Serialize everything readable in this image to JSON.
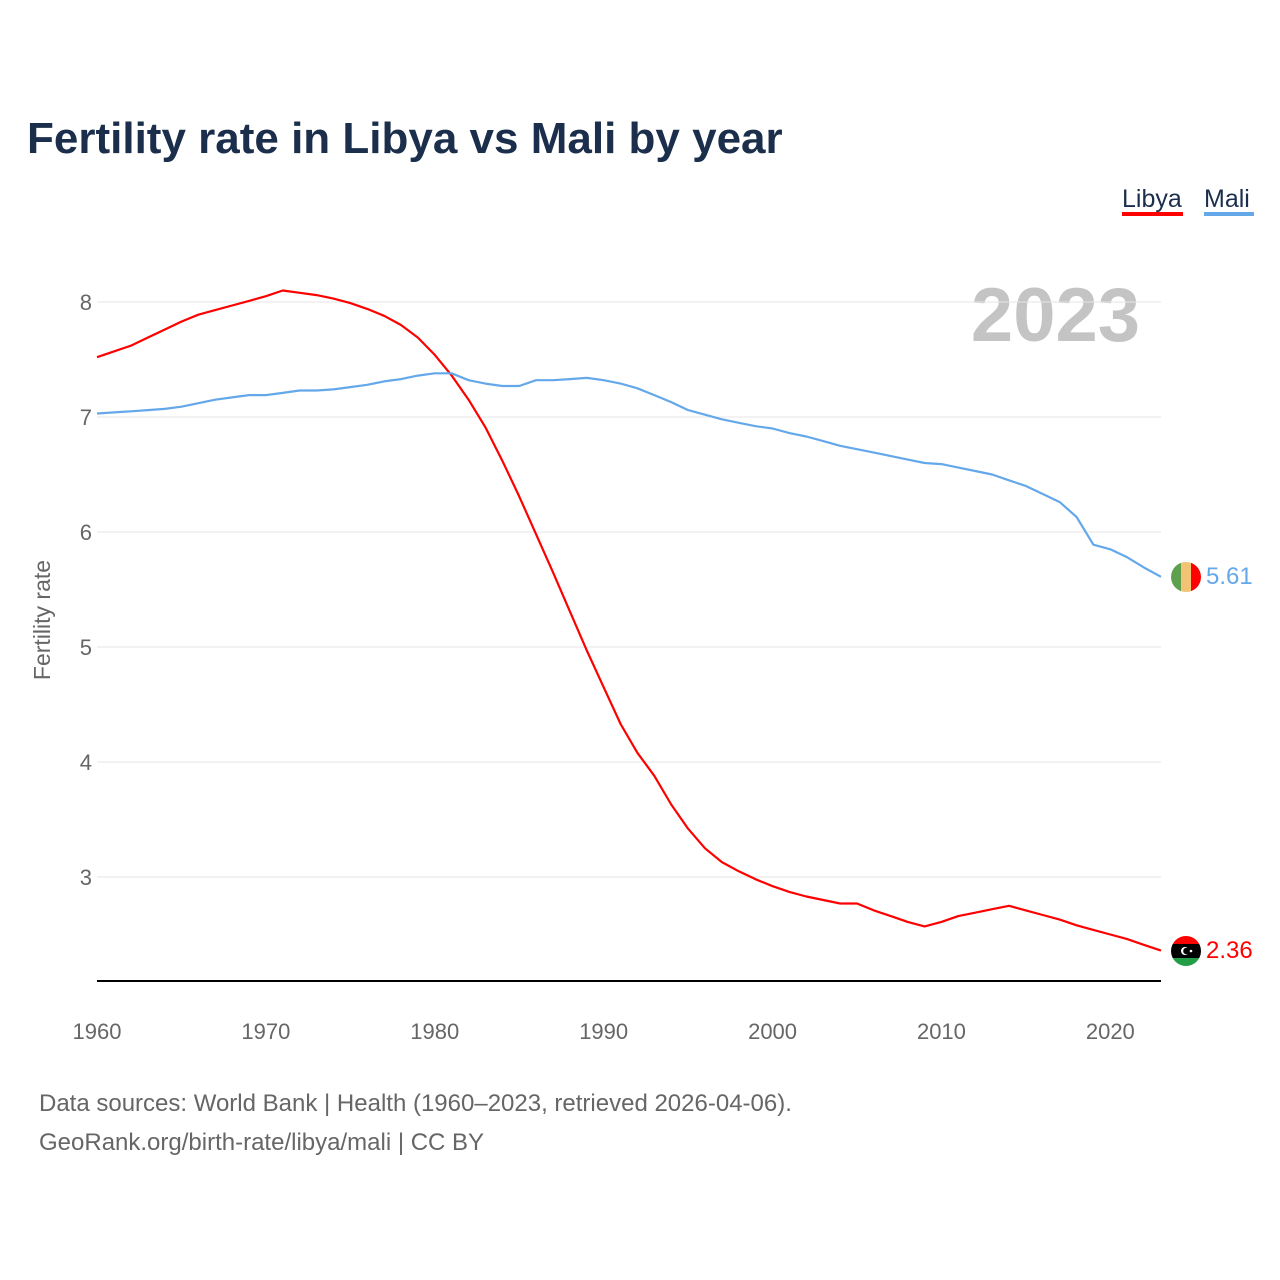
{
  "chart_data": {
    "type": "line",
    "title": "Fertility rate in Libya vs Mali by year",
    "ylabel": "Fertility rate",
    "xlabel": "",
    "xlim": [
      1960,
      2023
    ],
    "ylim": [
      2.1,
      8.1
    ],
    "yticks": [
      3,
      4,
      5,
      6,
      7,
      8
    ],
    "xticks": [
      1960,
      1970,
      1980,
      1990,
      2000,
      2010,
      2020
    ],
    "grid": true,
    "legend_position": "top-right",
    "year_label": "2023",
    "x": [
      1960,
      1961,
      1962,
      1963,
      1964,
      1965,
      1966,
      1967,
      1968,
      1969,
      1970,
      1971,
      1972,
      1973,
      1974,
      1975,
      1976,
      1977,
      1978,
      1979,
      1980,
      1981,
      1982,
      1983,
      1984,
      1985,
      1986,
      1987,
      1988,
      1989,
      1990,
      1991,
      1992,
      1993,
      1994,
      1995,
      1996,
      1997,
      1998,
      1999,
      2000,
      2001,
      2002,
      2003,
      2004,
      2005,
      2006,
      2007,
      2008,
      2009,
      2010,
      2011,
      2012,
      2013,
      2014,
      2015,
      2016,
      2017,
      2018,
      2019,
      2020,
      2021,
      2022,
      2023
    ],
    "series": [
      {
        "name": "Libya",
        "color": "#ff0000",
        "end_label": "2.36",
        "values": [
          7.52,
          7.57,
          7.62,
          7.69,
          7.76,
          7.83,
          7.89,
          7.93,
          7.97,
          8.01,
          8.05,
          8.1,
          8.08,
          8.06,
          8.03,
          7.99,
          7.94,
          7.88,
          7.8,
          7.69,
          7.54,
          7.36,
          7.15,
          6.91,
          6.62,
          6.31,
          5.98,
          5.65,
          5.31,
          4.97,
          4.65,
          4.33,
          4.08,
          3.88,
          3.63,
          3.42,
          3.25,
          3.13,
          3.05,
          2.98,
          2.92,
          2.87,
          2.83,
          2.8,
          2.77,
          2.77,
          2.71,
          2.66,
          2.61,
          2.57,
          2.61,
          2.66,
          2.69,
          2.72,
          2.75,
          2.71,
          2.67,
          2.63,
          2.58,
          2.54,
          2.5,
          2.46,
          2.41,
          2.36
        ]
      },
      {
        "name": "Mali",
        "color": "#64a8ea",
        "end_label": "5.61",
        "values": [
          7.03,
          7.04,
          7.05,
          7.06,
          7.07,
          7.09,
          7.12,
          7.15,
          7.17,
          7.19,
          7.19,
          7.21,
          7.23,
          7.23,
          7.24,
          7.26,
          7.28,
          7.31,
          7.33,
          7.36,
          7.38,
          7.38,
          7.32,
          7.29,
          7.27,
          7.27,
          7.32,
          7.32,
          7.33,
          7.34,
          7.32,
          7.29,
          7.25,
          7.19,
          7.13,
          7.06,
          7.02,
          6.98,
          6.95,
          6.92,
          6.9,
          6.86,
          6.83,
          6.79,
          6.75,
          6.72,
          6.69,
          6.66,
          6.63,
          6.6,
          6.59,
          6.56,
          6.53,
          6.5,
          6.45,
          6.4,
          6.33,
          6.26,
          6.13,
          5.89,
          5.85,
          5.78,
          5.69,
          5.61
        ]
      }
    ]
  },
  "footer": {
    "line1": "Data sources: World Bank | Health (1960–2023, retrieved 2026-04-06).",
    "line2": "GeoRank.org/birth-rate/libya/mali | CC BY"
  }
}
